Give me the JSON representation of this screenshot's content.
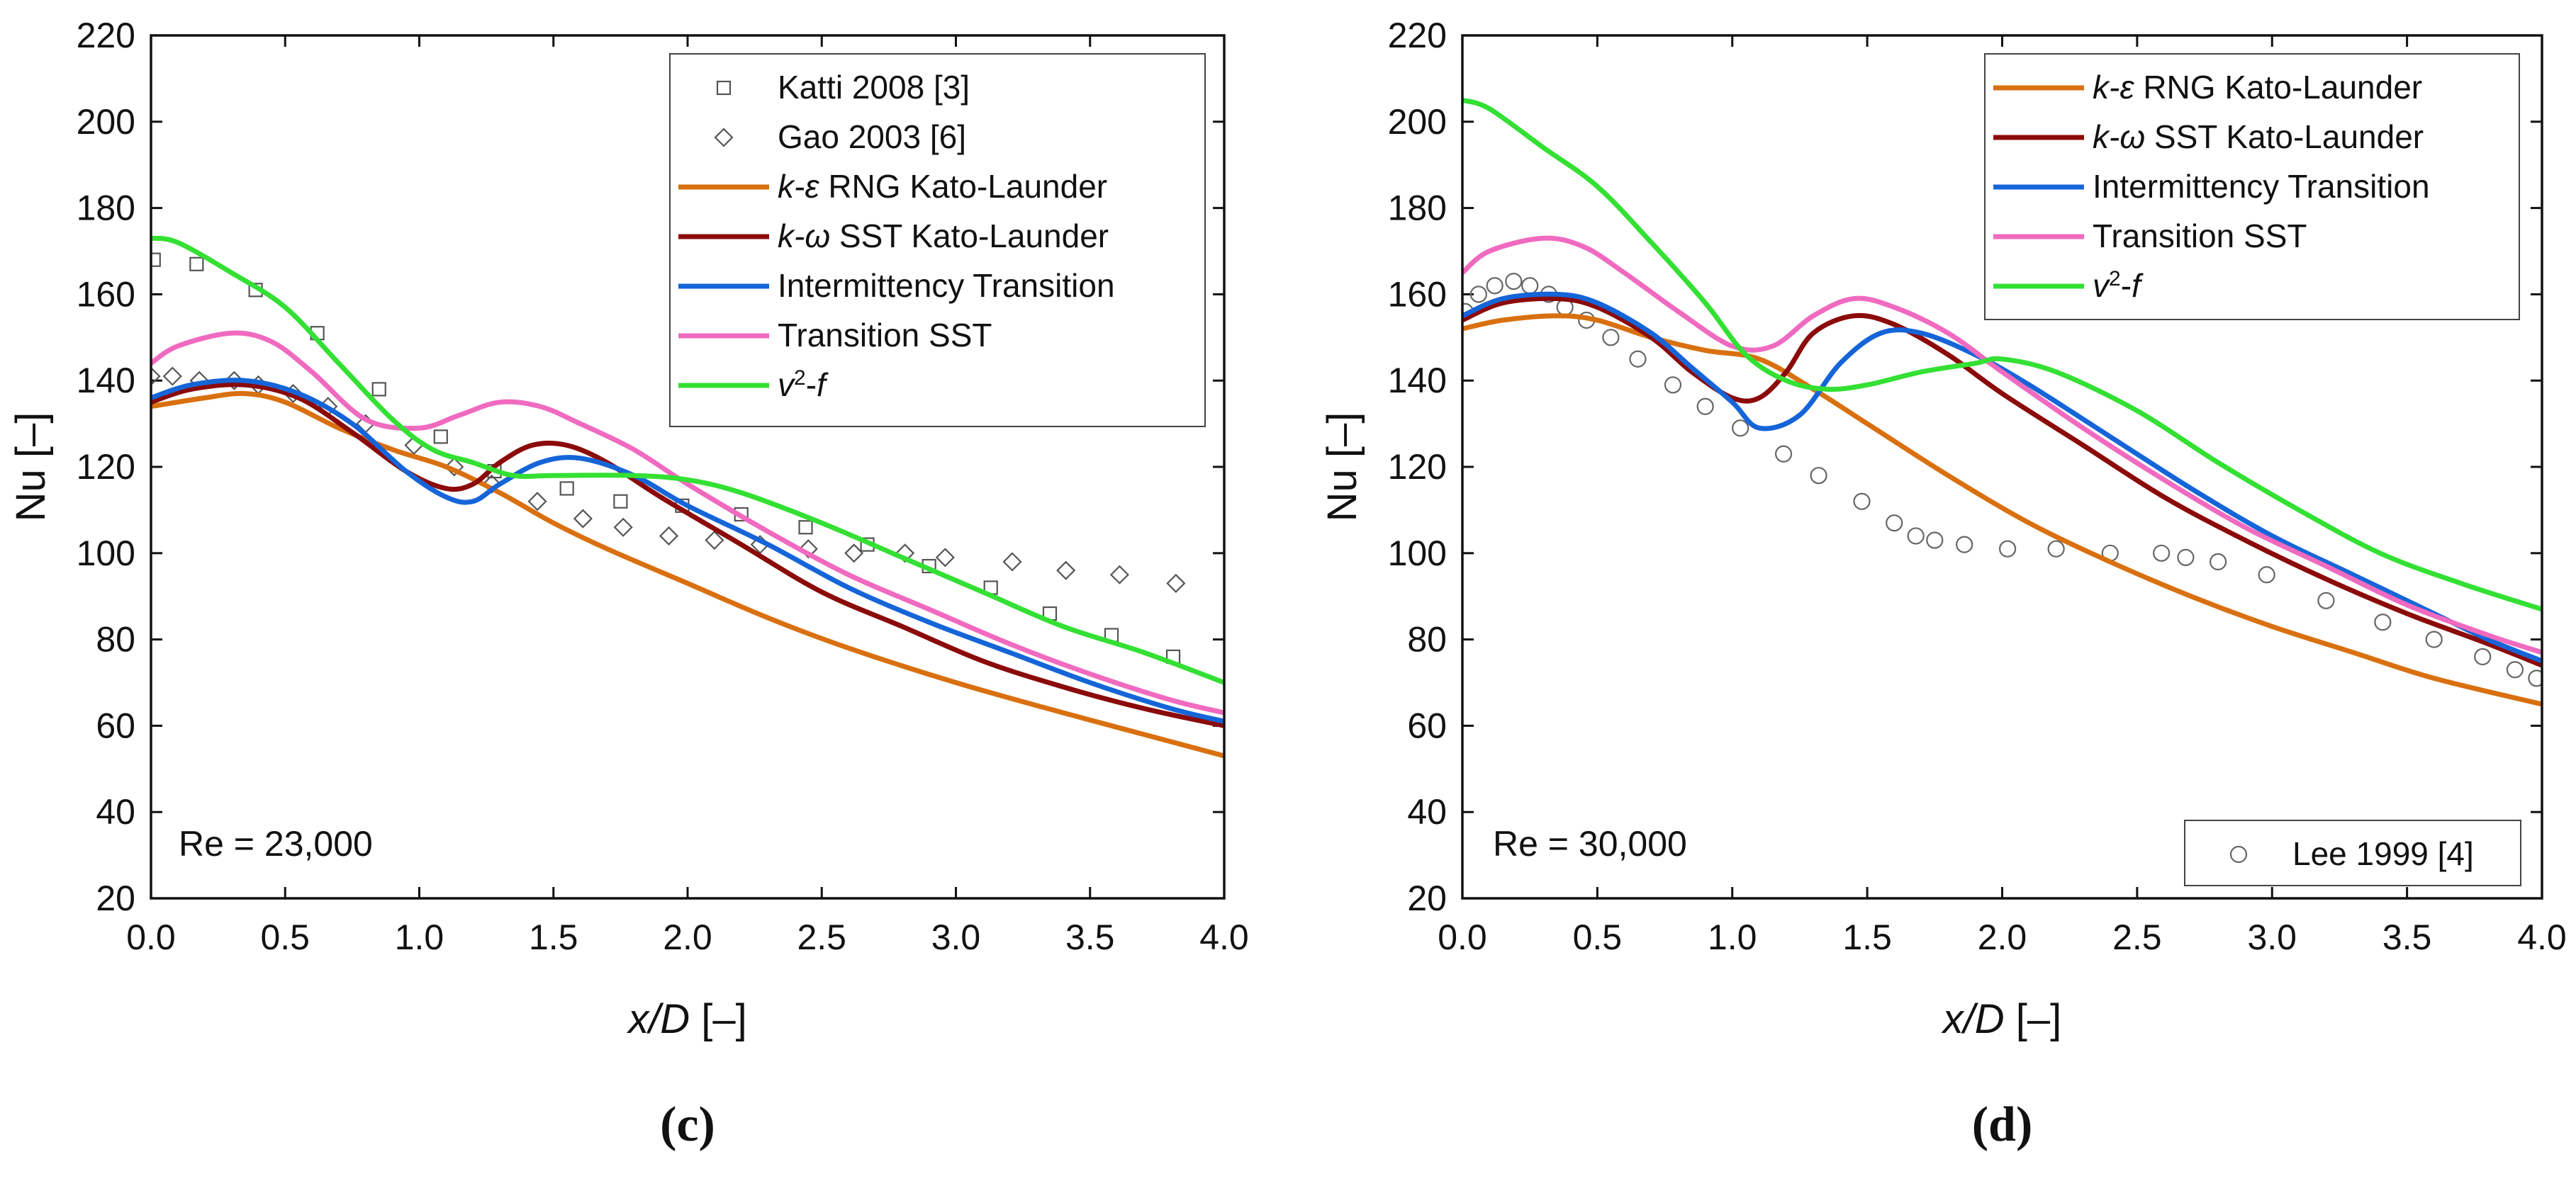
{
  "chart_data": [
    {
      "type": "line",
      "panel_label": "(c)",
      "annotation": "Re = 23,000",
      "xlabel": {
        "italic": "x/D",
        "rest": " [–]"
      },
      "ylabel": "Nu [–]",
      "xlim": [
        0,
        4
      ],
      "ylim": [
        20,
        220
      ],
      "xticks": [
        0,
        0.5,
        1,
        1.5,
        2,
        2.5,
        3,
        3.5,
        4
      ],
      "xtick_labels": [
        "0.0",
        "0.5",
        "1.0",
        "1.5",
        "2.0",
        "2.5",
        "3.0",
        "3.5",
        "4.0"
      ],
      "yticks": [
        20,
        40,
        60,
        80,
        100,
        120,
        140,
        160,
        180,
        200,
        220
      ],
      "ytick_labels": [
        "20",
        "40",
        "60",
        "80",
        "100",
        "120",
        "140",
        "160",
        "180",
        "200",
        "220"
      ],
      "legend_position": "top-right",
      "legend": [
        {
          "kind": "square",
          "label": "Katti 2008 [3]"
        },
        {
          "kind": "diamond",
          "label": "Gao 2003 [6]"
        },
        {
          "kind": "line",
          "color": "#D9700F",
          "sym": "k-ε",
          "label": " RNG Kato-Launder"
        },
        {
          "kind": "line",
          "color": "#8B0A0A",
          "sym": "k-ω",
          "label": " SST Kato-Launder"
        },
        {
          "kind": "line",
          "color": "#1565D8",
          "label": "Intermittency Transition"
        },
        {
          "kind": "line",
          "color": "#F06AC0",
          "label": "Transition SST"
        },
        {
          "kind": "line",
          "color": "#33E033",
          "sym": "v²-f",
          "label": ""
        }
      ],
      "scatter": [
        {
          "name": "Katti 2008 [3]",
          "marker": "square",
          "x": [
            0.01,
            0.17,
            0.39,
            0.62,
            0.85,
            1.08,
            1.28,
            1.55,
            1.75,
            1.98,
            2.2,
            2.44,
            2.67,
            2.9,
            3.13,
            3.35,
            3.58,
            3.81
          ],
          "y": [
            168,
            167,
            161,
            151,
            138,
            127,
            119,
            115,
            112,
            111,
            109,
            106,
            102,
            97,
            92,
            86,
            81,
            76
          ]
        },
        {
          "name": "Gao 2003 [6]",
          "marker": "diamond",
          "x": [
            0.0,
            0.08,
            0.18,
            0.31,
            0.4,
            0.53,
            0.66,
            0.8,
            0.98,
            1.13,
            1.27,
            1.44,
            1.61,
            1.76,
            1.93,
            2.1,
            2.27,
            2.45,
            2.62,
            2.81,
            2.96,
            3.21,
            3.41,
            3.61,
            3.82
          ],
          "y": [
            141,
            141,
            140,
            140,
            139,
            137,
            134,
            130,
            125,
            120,
            116,
            112,
            108,
            106,
            104,
            103,
            102,
            101,
            100,
            100,
            99,
            98,
            96,
            95,
            93
          ]
        }
      ],
      "series": [
        {
          "name": "k-ε RNG Kato-Launder",
          "color": "#D9700F",
          "x": [
            0,
            0.2,
            0.35,
            0.5,
            0.7,
            0.9,
            1.1,
            1.3,
            1.5,
            1.7,
            2.0,
            2.3,
            2.6,
            3.0,
            3.4,
            3.7,
            4.0
          ],
          "y": [
            134,
            136,
            137,
            135,
            129,
            124,
            120,
            114,
            107,
            101,
            93,
            85,
            78,
            70,
            63,
            58,
            53
          ]
        },
        {
          "name": "k-ω SST Kato-Launder",
          "color": "#8B0A0A",
          "x": [
            0,
            0.15,
            0.35,
            0.55,
            0.75,
            0.95,
            1.1,
            1.2,
            1.3,
            1.42,
            1.55,
            1.7,
            1.9,
            2.2,
            2.5,
            2.8,
            3.1,
            3.4,
            3.7,
            4.0
          ],
          "y": [
            135,
            138,
            139,
            136,
            128,
            119,
            115,
            116,
            121,
            125,
            125,
            121,
            113,
            102,
            91,
            83,
            75,
            69,
            64,
            60
          ]
        },
        {
          "name": "Intermittency Transition",
          "color": "#1565D8",
          "x": [
            0,
            0.15,
            0.35,
            0.55,
            0.75,
            0.95,
            1.1,
            1.2,
            1.3,
            1.45,
            1.6,
            1.8,
            2.0,
            2.3,
            2.6,
            2.9,
            3.2,
            3.5,
            3.8,
            4.0
          ],
          "y": [
            136,
            139,
            140,
            137,
            130,
            119,
            113,
            112,
            116,
            121,
            122,
            118,
            111,
            102,
            92,
            84,
            77,
            70,
            64,
            61
          ]
        },
        {
          "name": "Transition SST",
          "color": "#F06AC0",
          "x": [
            0,
            0.1,
            0.3,
            0.45,
            0.6,
            0.8,
            1.0,
            1.15,
            1.3,
            1.45,
            1.6,
            1.8,
            2.0,
            2.3,
            2.6,
            2.9,
            3.2,
            3.5,
            3.8,
            4.0
          ],
          "y": [
            144,
            148,
            151,
            149,
            142,
            131,
            129,
            132,
            135,
            134,
            130,
            124,
            116,
            105,
            95,
            87,
            79,
            72,
            66,
            63
          ]
        },
        {
          "name": "v²-f",
          "color": "#33E033",
          "x": [
            0,
            0.1,
            0.3,
            0.5,
            0.7,
            0.9,
            1.05,
            1.2,
            1.35,
            1.5,
            1.8,
            2.0,
            2.2,
            2.5,
            2.8,
            3.1,
            3.4,
            3.7,
            4.0
          ],
          "y": [
            173,
            172,
            165,
            157,
            144,
            131,
            124,
            121,
            118,
            118,
            118,
            117,
            114,
            107,
            99,
            91,
            83,
            77,
            70
          ]
        }
      ]
    },
    {
      "type": "line",
      "panel_label": "(d)",
      "annotation": "Re = 30,000",
      "xlabel": {
        "italic": "x/D",
        "rest": " [–]"
      },
      "ylabel": "Nu [–]",
      "xlim": [
        0,
        4
      ],
      "ylim": [
        20,
        220
      ],
      "xticks": [
        0,
        0.5,
        1,
        1.5,
        2,
        2.5,
        3,
        3.5,
        4
      ],
      "xtick_labels": [
        "0.0",
        "0.5",
        "1.0",
        "1.5",
        "2.0",
        "2.5",
        "3.0",
        "3.5",
        "4.0"
      ],
      "yticks": [
        20,
        40,
        60,
        80,
        100,
        120,
        140,
        160,
        180,
        200,
        220
      ],
      "ytick_labels": [
        "20",
        "40",
        "60",
        "80",
        "100",
        "120",
        "140",
        "160",
        "180",
        "200",
        "220"
      ],
      "legend_position": "top-right",
      "legend": [
        {
          "kind": "line",
          "color": "#D9700F",
          "sym": "k-ε",
          "label": " RNG Kato-Launder"
        },
        {
          "kind": "line",
          "color": "#8B0A0A",
          "sym": "k-ω",
          "label": " SST Kato-Launder"
        },
        {
          "kind": "line",
          "color": "#1565D8",
          "label": "Intermittency Transition"
        },
        {
          "kind": "line",
          "color": "#F06AC0",
          "label": "Transition SST"
        },
        {
          "kind": "line",
          "color": "#33E033",
          "sym": "v²-f",
          "label": ""
        }
      ],
      "legend2_position": "bottom-right",
      "legend2": [
        {
          "kind": "circle",
          "label": "Lee 1999 [4]"
        }
      ],
      "scatter": [
        {
          "name": "Lee 1999 [4]",
          "marker": "circle",
          "x": [
            0.01,
            0.06,
            0.12,
            0.19,
            0.25,
            0.32,
            0.38,
            0.46,
            0.55,
            0.65,
            0.78,
            0.9,
            1.03,
            1.19,
            1.32,
            1.48,
            1.6,
            1.68,
            1.75,
            1.86,
            2.02,
            2.2,
            2.4,
            2.59,
            2.68,
            2.8,
            2.98,
            3.2,
            3.41,
            3.6,
            3.78,
            3.9,
            3.98
          ],
          "y": [
            156,
            160,
            162,
            163,
            162,
            160,
            157,
            154,
            150,
            145,
            139,
            134,
            129,
            123,
            118,
            112,
            107,
            104,
            103,
            102,
            101,
            101,
            100,
            100,
            99,
            98,
            95,
            89,
            84,
            80,
            76,
            73,
            71
          ]
        }
      ],
      "series": [
        {
          "name": "k-ε RNG Kato-Launder",
          "color": "#D9700F",
          "x": [
            0,
            0.15,
            0.35,
            0.5,
            0.7,
            0.9,
            1.1,
            1.3,
            1.5,
            1.8,
            2.1,
            2.4,
            2.7,
            3.0,
            3.3,
            3.6,
            4.0
          ],
          "y": [
            152,
            154,
            155,
            154,
            150,
            147,
            145,
            138,
            130,
            118,
            107,
            98,
            90,
            83,
            77,
            71,
            65
          ]
        },
        {
          "name": "k-ω SST Kato-Launder",
          "color": "#8B0A0A",
          "x": [
            0,
            0.15,
            0.35,
            0.5,
            0.7,
            0.85,
            1.0,
            1.1,
            1.2,
            1.3,
            1.45,
            1.6,
            1.8,
            2.0,
            2.3,
            2.6,
            2.9,
            3.2,
            3.5,
            3.8,
            4.0
          ],
          "y": [
            154,
            158,
            159,
            157,
            150,
            142,
            136,
            136,
            142,
            151,
            155,
            153,
            146,
            137,
            125,
            113,
            103,
            94,
            86,
            79,
            74
          ]
        },
        {
          "name": "Intermittency Transition",
          "color": "#1565D8",
          "x": [
            0,
            0.15,
            0.35,
            0.5,
            0.7,
            0.85,
            1.0,
            1.1,
            1.25,
            1.4,
            1.55,
            1.7,
            1.9,
            2.1,
            2.4,
            2.7,
            3.0,
            3.3,
            3.6,
            3.8,
            4.0
          ],
          "y": [
            155,
            159,
            160,
            158,
            151,
            143,
            135,
            129,
            132,
            144,
            151,
            151,
            146,
            139,
            127,
            115,
            104,
            95,
            86,
            80,
            75
          ]
        },
        {
          "name": "Transition SST",
          "color": "#F06AC0",
          "x": [
            0,
            0.1,
            0.3,
            0.45,
            0.6,
            0.8,
            1.0,
            1.15,
            1.3,
            1.45,
            1.6,
            1.8,
            2.0,
            2.3,
            2.6,
            2.9,
            3.2,
            3.5,
            3.8,
            4.0
          ],
          "y": [
            165,
            170,
            173,
            171,
            165,
            156,
            148,
            148,
            155,
            159,
            157,
            151,
            142,
            129,
            117,
            106,
            97,
            88,
            81,
            77
          ]
        },
        {
          "name": "v²-f",
          "color": "#33E033",
          "x": [
            0,
            0.1,
            0.3,
            0.5,
            0.7,
            0.9,
            1.05,
            1.2,
            1.35,
            1.5,
            1.7,
            1.9,
            2.0,
            2.2,
            2.5,
            2.8,
            3.1,
            3.4,
            3.7,
            4.0
          ],
          "y": [
            205,
            203,
            194,
            185,
            172,
            158,
            146,
            140,
            138,
            139,
            142,
            144,
            145,
            142,
            133,
            121,
            110,
            100,
            93,
            87
          ]
        }
      ]
    }
  ]
}
